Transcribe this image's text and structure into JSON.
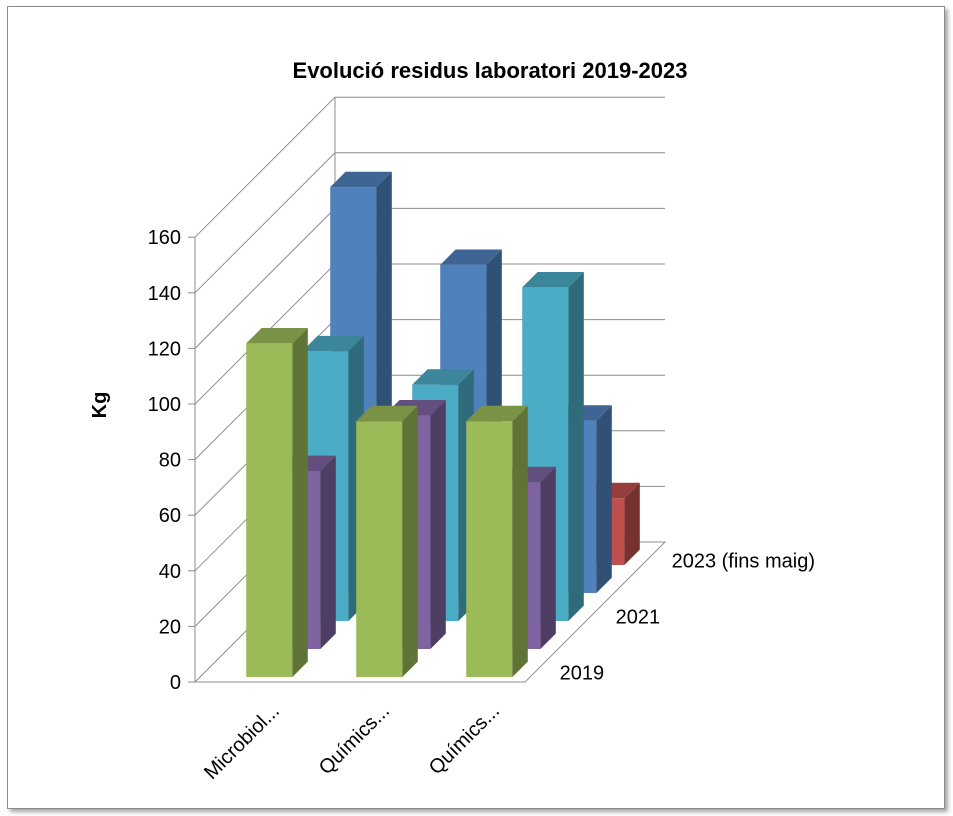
{
  "chart_data": {
    "type": "bar",
    "style": "3d-column",
    "title": "Evolució residus laboratori 2019-2023",
    "ylabel": "Kg",
    "ylim": [
      0,
      160
    ],
    "yticks": [
      0,
      20,
      40,
      60,
      80,
      100,
      120,
      140,
      160
    ],
    "categories": [
      "Microbiol...",
      "Químics...",
      "Químics..."
    ],
    "grid": true,
    "series": [
      {
        "name": "2019",
        "color": "#9BBB59",
        "values": [
          120,
          92,
          92
        ]
      },
      {
        "name": "",
        "color": "#8064A2",
        "values": [
          64,
          84,
          60
        ]
      },
      {
        "name": "2021",
        "color": "#4BACC6",
        "values": [
          97,
          85,
          120
        ]
      },
      {
        "name": "",
        "color": "#4F81BD",
        "values": [
          146,
          118,
          62
        ]
      },
      {
        "name": "2023 (fins maig)",
        "color": "#C0504D",
        "values": [
          null,
          null,
          24
        ]
      }
    ]
  }
}
